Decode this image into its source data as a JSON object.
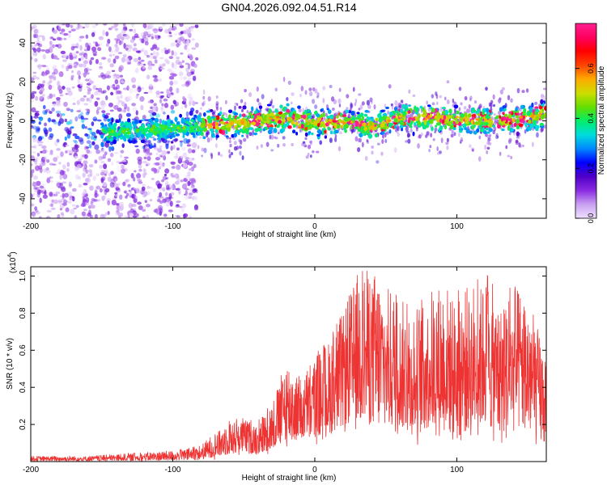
{
  "figure_title": "GN04.2026.092.04.51.R14",
  "chart_data": [
    {
      "type": "heatmap",
      "title": "GN04.2026.092.04.51.R14",
      "xlabel": "Height of straight line (km)",
      "ylabel": "Frequency (Hz)",
      "xlim": [
        -200,
        163
      ],
      "ylim": [
        -50,
        50
      ],
      "xticks": [
        -200,
        -100,
        0,
        100
      ],
      "xtick_labels": [
        "-200",
        "-100",
        "0",
        "100"
      ],
      "yticks": [
        -40,
        -20,
        0,
        20,
        40
      ],
      "ytick_labels": [
        "-40",
        "-20",
        "0",
        "20",
        "40"
      ],
      "colorbar": {
        "label": "Normalized spectral amplitude",
        "range": [
          0,
          0.78
        ],
        "ticks": [
          0.0,
          0.2,
          0.4,
          0.6
        ],
        "tick_labels": [
          "0.0",
          "0.2",
          "0.4",
          "0.6"
        ],
        "colormap": [
          "#f0e0ff",
          "#c8a0f0",
          "#8a2be2",
          "#5000c8",
          "#0000ff",
          "#0088ff",
          "#00dddd",
          "#00ee66",
          "#66dd00",
          "#ccdd00",
          "#ffaa00",
          "#ff4400",
          "#ff0000",
          "#ff0060",
          "#ff2090"
        ]
      },
      "band_center_hz": [
        {
          "x": -200,
          "y": 0
        },
        {
          "x": -150,
          "y": -6
        },
        {
          "x": -100,
          "y": -4
        },
        {
          "x": -75,
          "y": -2
        },
        {
          "x": -50,
          "y": -1
        },
        {
          "x": -25,
          "y": 2
        },
        {
          "x": 0,
          "y": -1
        },
        {
          "x": 25,
          "y": -1
        },
        {
          "x": 40,
          "y": -3
        },
        {
          "x": 60,
          "y": 2
        },
        {
          "x": 100,
          "y": 1
        },
        {
          "x": 130,
          "y": 0
        },
        {
          "x": 163,
          "y": 3
        }
      ],
      "band_halfwidth_hz": 9,
      "noisy_region_x": [
        -200,
        -83
      ],
      "noise_level": [
        0.0,
        0.15
      ],
      "band_amplitude_range": [
        0.1,
        0.78
      ]
    },
    {
      "type": "line",
      "xlabel": "Height of straight line (km)",
      "ylabel": "SNR (10 * v/v)",
      "y_multiplier": "(x10",
      "y_multiplier_exp": "4",
      "y_multiplier_close": ")",
      "xlim": [
        -200,
        163
      ],
      "ylim": [
        0,
        1.05
      ],
      "xticks": [
        -200,
        -100,
        0,
        100
      ],
      "xtick_labels": [
        "-200",
        "-100",
        "0",
        "100"
      ],
      "yticks": [
        0.2,
        0.4,
        0.6,
        0.8,
        1.0
      ],
      "ytick_labels": [
        "0.2",
        "0.4",
        "0.6",
        "0.8",
        "1.0"
      ],
      "line_color": "#ee3333",
      "series": [
        {
          "name": "SNR",
          "envelope_x": [
            -200,
            -180,
            -160,
            -140,
            -120,
            -100,
            -90,
            -80,
            -70,
            -60,
            -50,
            -40,
            -30,
            -20,
            -10,
            0,
            10,
            20,
            30,
            40,
            50,
            60,
            70,
            80,
            90,
            100,
            110,
            120,
            130,
            140,
            150,
            160,
            163
          ],
          "envelope_max": [
            0.03,
            0.03,
            0.03,
            0.04,
            0.05,
            0.06,
            0.07,
            0.09,
            0.16,
            0.22,
            0.24,
            0.22,
            0.32,
            0.55,
            0.45,
            0.58,
            0.65,
            0.82,
            1.02,
            1.04,
            0.95,
            0.88,
            0.82,
            0.92,
            0.96,
            0.92,
            0.95,
            1.02,
            0.9,
            0.95,
            0.88,
            0.65,
            0.5
          ],
          "envelope_min": [
            0.0,
            0.0,
            0.0,
            0.0,
            0.0,
            0.0,
            0.0,
            0.0,
            0.01,
            0.02,
            0.03,
            0.02,
            0.04,
            0.06,
            0.08,
            0.08,
            0.1,
            0.12,
            0.14,
            0.12,
            0.1,
            0.12,
            0.06,
            0.1,
            0.12,
            0.04,
            0.1,
            0.12,
            0.06,
            0.1,
            0.1,
            0.04,
            0.06
          ]
        }
      ]
    }
  ]
}
